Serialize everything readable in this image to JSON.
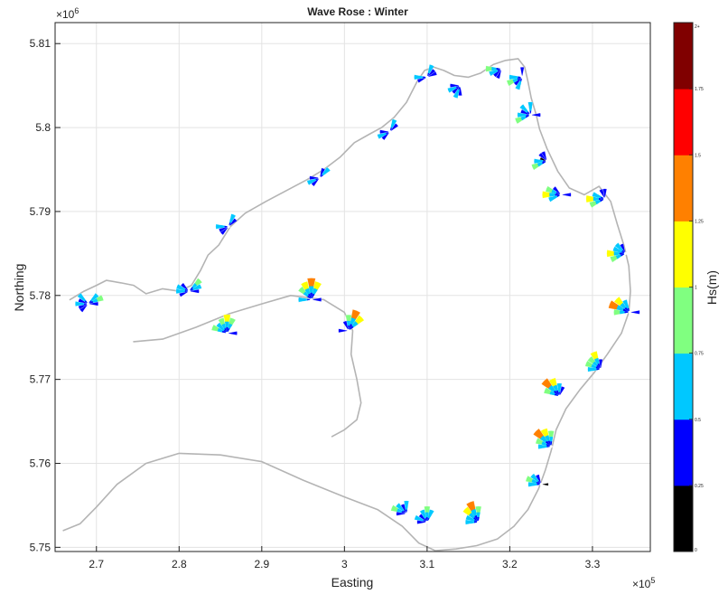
{
  "chart_data": {
    "type": "wave-rose-map",
    "title": "Wave Rose : Winter",
    "xlabel": "Easting",
    "ylabel": "Northing",
    "x_exponent": "×10",
    "x_exponent_power": "5",
    "y_exponent": "×10",
    "y_exponent_power": "6",
    "xlim": [
      2.65,
      3.37
    ],
    "ylim": [
      5.7495,
      5.8125
    ],
    "xticks": [
      {
        "value": 2.7,
        "label": "2.7"
      },
      {
        "value": 2.8,
        "label": "2.8"
      },
      {
        "value": 2.9,
        "label": "2.9"
      },
      {
        "value": 3.0,
        "label": "3"
      },
      {
        "value": 3.1,
        "label": "3.1"
      },
      {
        "value": 3.2,
        "label": "3.2"
      },
      {
        "value": 3.3,
        "label": "3.3"
      }
    ],
    "yticks": [
      {
        "value": 5.75,
        "label": "5.75"
      },
      {
        "value": 5.76,
        "label": "5.76"
      },
      {
        "value": 5.77,
        "label": "5.77"
      },
      {
        "value": 5.78,
        "label": "5.78"
      },
      {
        "value": 5.79,
        "label": "5.79"
      },
      {
        "value": 5.8,
        "label": "5.8"
      },
      {
        "value": 5.81,
        "label": "5.81"
      }
    ],
    "grid": true,
    "colorbar": {
      "label": "Hs(m)",
      "ticks": [
        "0",
        "0.25",
        "0.5",
        "0.75",
        "1",
        "1.25",
        "1.5",
        "1.75",
        "2+"
      ],
      "colors": [
        "#000000",
        "#0000ff",
        "#00c8ff",
        "#80ff80",
        "#ffff00",
        "#ff8000",
        "#ff0000",
        "#800000"
      ]
    },
    "coastline": [
      [
        2.668,
        5.7795
      ],
      [
        2.685,
        5.7805
      ],
      [
        2.7,
        5.7812
      ],
      [
        2.712,
        5.7818
      ],
      [
        2.73,
        5.7815
      ],
      [
        2.745,
        5.7812
      ],
      [
        2.76,
        5.7802
      ],
      [
        2.78,
        5.7808
      ],
      [
        2.8,
        5.7805
      ],
      [
        2.815,
        5.7812
      ],
      [
        2.826,
        5.783
      ],
      [
        2.835,
        5.7848
      ],
      [
        2.848,
        5.786
      ],
      [
        2.862,
        5.7882
      ],
      [
        2.88,
        5.7898
      ],
      [
        2.905,
        5.7912
      ],
      [
        2.93,
        5.7925
      ],
      [
        2.955,
        5.7938
      ],
      [
        2.975,
        5.795
      ],
      [
        2.995,
        5.7965
      ],
      [
        3.012,
        5.7982
      ],
      [
        3.03,
        5.7992
      ],
      [
        3.045,
        5.8
      ],
      [
        3.06,
        5.8012
      ],
      [
        3.075,
        5.803
      ],
      [
        3.088,
        5.8055
      ],
      [
        3.097,
        5.8068
      ],
      [
        3.108,
        5.8072
      ],
      [
        3.12,
        5.8068
      ],
      [
        3.133,
        5.8062
      ],
      [
        3.15,
        5.806
      ],
      [
        3.165,
        5.8065
      ],
      [
        3.18,
        5.8075
      ],
      [
        3.195,
        5.808
      ],
      [
        3.21,
        5.8082
      ],
      [
        3.218,
        5.8072
      ],
      [
        3.222,
        5.8055
      ],
      [
        3.226,
        5.8035
      ],
      [
        3.232,
        5.8015
      ],
      [
        3.236,
        5.7998
      ],
      [
        3.245,
        5.7975
      ],
      [
        3.258,
        5.7948
      ],
      [
        3.272,
        5.7928
      ],
      [
        3.29,
        5.792
      ],
      [
        3.308,
        5.793
      ],
      [
        3.322,
        5.7912
      ],
      [
        3.33,
        5.7885
      ],
      [
        3.338,
        5.786
      ],
      [
        3.344,
        5.7835
      ],
      [
        3.346,
        5.7805
      ],
      [
        3.344,
        5.778
      ],
      [
        3.335,
        5.7755
      ],
      [
        3.318,
        5.773
      ],
      [
        3.302,
        5.7708
      ],
      [
        3.285,
        5.7688
      ],
      [
        3.268,
        5.7665
      ],
      [
        3.256,
        5.764
      ],
      [
        3.25,
        5.7615
      ],
      [
        3.243,
        5.7592
      ],
      [
        3.235,
        5.757
      ],
      [
        3.222,
        5.7545
      ],
      [
        3.205,
        5.7525
      ],
      [
        3.185,
        5.751
      ],
      [
        3.16,
        5.7502
      ],
      [
        3.135,
        5.7498
      ],
      [
        3.11,
        5.7496
      ],
      [
        3.09,
        5.7505
      ],
      [
        3.07,
        5.7525
      ],
      [
        3.04,
        5.7545
      ],
      [
        3.0,
        5.756
      ],
      [
        2.95,
        5.758
      ],
      [
        2.9,
        5.7602
      ],
      [
        2.85,
        5.761
      ],
      [
        2.8,
        5.7612
      ],
      [
        2.76,
        5.76
      ],
      [
        2.725,
        5.7575
      ],
      [
        2.7,
        5.7548
      ],
      [
        2.68,
        5.7528
      ],
      [
        2.66,
        5.752
      ]
    ],
    "inner_shore": [
      [
        2.745,
        5.7745
      ],
      [
        2.78,
        5.7748
      ],
      [
        2.82,
        5.7762
      ],
      [
        2.86,
        5.7778
      ],
      [
        2.9,
        5.779
      ],
      [
        2.935,
        5.78
      ],
      [
        2.975,
        5.7795
      ],
      [
        3.0,
        5.778
      ],
      [
        3.01,
        5.7758
      ],
      [
        3.008,
        5.773
      ],
      [
        3.015,
        5.77
      ],
      [
        3.02,
        5.7672
      ],
      [
        3.015,
        5.7652
      ],
      [
        3.0,
        5.764
      ],
      [
        2.985,
        5.7632
      ]
    ],
    "stations": [
      {
        "x": 2.69,
        "y": 5.779,
        "sectors": [
          [
            225,
            "#0000ff"
          ],
          [
            247,
            "#0000ff"
          ],
          [
            270,
            "#00c8ff"
          ],
          [
            292,
            "#0000ff"
          ],
          [
            315,
            "#00c8ff"
          ],
          [
            45,
            "#00c8ff"
          ],
          [
            67,
            "#80ff80"
          ],
          [
            90,
            "#0000ff"
          ]
        ]
      },
      {
        "x": 2.812,
        "y": 5.7805,
        "sectors": [
          [
            247,
            "#0000ff"
          ],
          [
            270,
            "#00c8ff"
          ],
          [
            292,
            "#00c8ff"
          ],
          [
            315,
            "#0000ff"
          ],
          [
            45,
            "#80ff80"
          ],
          [
            67,
            "#00c8ff"
          ],
          [
            90,
            "#0000ff"
          ]
        ]
      },
      {
        "x": 2.858,
        "y": 5.7755,
        "sectors": [
          [
            0,
            "#ffff00"
          ],
          [
            22,
            "#80ff80"
          ],
          [
            292,
            "#80ff80"
          ],
          [
            315,
            "#00c8ff"
          ],
          [
            337,
            "#80ff80"
          ],
          [
            90,
            "#0000ff"
          ]
        ]
      },
      {
        "x": 2.86,
        "y": 5.7882,
        "sectors": [
          [
            22,
            "#00c8ff"
          ],
          [
            45,
            "#0000ff"
          ],
          [
            225,
            "#0000ff"
          ],
          [
            247,
            "#0000ff"
          ],
          [
            270,
            "#00c8ff"
          ]
        ]
      },
      {
        "x": 2.96,
        "y": 5.7795,
        "sectors": [
          [
            0,
            "#ff8000"
          ],
          [
            22,
            "#ffff00"
          ],
          [
            315,
            "#80ff80"
          ],
          [
            337,
            "#ffff00"
          ],
          [
            270,
            "#00c8ff"
          ],
          [
            90,
            "#0000ff"
          ]
        ]
      },
      {
        "x": 2.97,
        "y": 5.794,
        "sectors": [
          [
            22,
            "#0000ff"
          ],
          [
            45,
            "#00c8ff"
          ],
          [
            225,
            "#0000ff"
          ],
          [
            247,
            "#00c8ff"
          ],
          [
            270,
            "#0000ff"
          ]
        ]
      },
      {
        "x": 3.005,
        "y": 5.7758,
        "sectors": [
          [
            22,
            "#ff8000"
          ],
          [
            45,
            "#ffff00"
          ],
          [
            0,
            "#80ff80"
          ],
          [
            337,
            "#0000ff"
          ],
          [
            270,
            "#0000ff"
          ]
        ]
      },
      {
        "x": 3.055,
        "y": 5.7995,
        "sectors": [
          [
            22,
            "#00c8ff"
          ],
          [
            45,
            "#0000ff"
          ],
          [
            225,
            "#0000ff"
          ],
          [
            247,
            "#00c8ff"
          ],
          [
            270,
            "#0000ff"
          ]
        ]
      },
      {
        "x": 3.1,
        "y": 5.806,
        "sectors": [
          [
            22,
            "#00c8ff"
          ],
          [
            45,
            "#0000ff"
          ],
          [
            67,
            "#0000ff"
          ],
          [
            247,
            "#0000ff"
          ],
          [
            270,
            "#00c8ff"
          ]
        ]
      },
      {
        "x": 3.14,
        "y": 5.805,
        "sectors": [
          [
            180,
            "#0000ff"
          ],
          [
            202,
            "#00c8ff"
          ],
          [
            225,
            "#0000ff"
          ],
          [
            247,
            "#00c8ff"
          ],
          [
            270,
            "#0000ff"
          ]
        ]
      },
      {
        "x": 3.19,
        "y": 5.807,
        "sectors": [
          [
            202,
            "#0000ff"
          ],
          [
            225,
            "#0000ff"
          ],
          [
            247,
            "#00c8ff"
          ],
          [
            270,
            "#80ff80"
          ]
        ]
      },
      {
        "x": 3.215,
        "y": 5.806,
        "sectors": [
          [
            0,
            "#0000ff"
          ],
          [
            202,
            "#00c8ff"
          ],
          [
            225,
            "#0000ff"
          ],
          [
            247,
            "#80ff80"
          ],
          [
            270,
            "#00c8ff"
          ]
        ]
      },
      {
        "x": 3.225,
        "y": 5.8015,
        "sectors": [
          [
            0,
            "#00c8ff"
          ],
          [
            247,
            "#80ff80"
          ],
          [
            270,
            "#00c8ff"
          ],
          [
            292,
            "#0000ff"
          ],
          [
            315,
            "#00c8ff"
          ],
          [
            90,
            "#0000ff"
          ]
        ]
      },
      {
        "x": 3.245,
        "y": 5.796,
        "sectors": [
          [
            292,
            "#000000"
          ],
          [
            315,
            "#0000ff"
          ],
          [
            270,
            "#00c8ff"
          ],
          [
            337,
            "#0000ff"
          ],
          [
            247,
            "#80ff80"
          ]
        ]
      },
      {
        "x": 3.262,
        "y": 5.792,
        "sectors": [
          [
            270,
            "#ffff00"
          ],
          [
            292,
            "#80ff80"
          ],
          [
            247,
            "#00c8ff"
          ],
          [
            315,
            "#0000ff"
          ],
          [
            90,
            "#0000ff"
          ]
        ]
      },
      {
        "x": 3.315,
        "y": 5.7915,
        "sectors": [
          [
            270,
            "#ffff00"
          ],
          [
            247,
            "#80ff80"
          ],
          [
            292,
            "#00c8ff"
          ],
          [
            0,
            "#0000ff"
          ],
          [
            337,
            "#0000ff"
          ]
        ]
      },
      {
        "x": 3.34,
        "y": 5.785,
        "sectors": [
          [
            270,
            "#ffff00"
          ],
          [
            247,
            "#80ff80"
          ],
          [
            292,
            "#00c8ff"
          ],
          [
            315,
            "#00c8ff"
          ],
          [
            337,
            "#0000ff"
          ]
        ]
      },
      {
        "x": 3.345,
        "y": 5.778,
        "sectors": [
          [
            292,
            "#ff8000"
          ],
          [
            315,
            "#ffff00"
          ],
          [
            270,
            "#80ff80"
          ],
          [
            337,
            "#00c8ff"
          ],
          [
            90,
            "#0000ff"
          ]
        ]
      },
      {
        "x": 3.31,
        "y": 5.7712,
        "sectors": [
          [
            315,
            "#80ff80"
          ],
          [
            337,
            "#ffff00"
          ],
          [
            292,
            "#80ff80"
          ],
          [
            270,
            "#00c8ff"
          ],
          [
            0,
            "#0000ff"
          ]
        ]
      },
      {
        "x": 3.26,
        "y": 5.768,
        "sectors": [
          [
            315,
            "#ff8000"
          ],
          [
            337,
            "#ffff00"
          ],
          [
            292,
            "#80ff80"
          ],
          [
            0,
            "#00c8ff"
          ],
          [
            22,
            "#0000ff"
          ]
        ]
      },
      {
        "x": 3.25,
        "y": 5.762,
        "sectors": [
          [
            337,
            "#ffff00"
          ],
          [
            315,
            "#ff8000"
          ],
          [
            292,
            "#80ff80"
          ],
          [
            0,
            "#80ff80"
          ],
          [
            270,
            "#00c8ff"
          ]
        ]
      },
      {
        "x": 3.238,
        "y": 5.7575,
        "sectors": [
          [
            292,
            "#80ff80"
          ],
          [
            315,
            "#00c8ff"
          ],
          [
            337,
            "#0000ff"
          ],
          [
            270,
            "#00c8ff"
          ],
          [
            90,
            "#000000"
          ]
        ]
      },
      {
        "x": 3.162,
        "y": 5.753,
        "sectors": [
          [
            315,
            "#ffff00"
          ],
          [
            337,
            "#ff8000"
          ],
          [
            292,
            "#00c8ff"
          ],
          [
            270,
            "#00c8ff"
          ],
          [
            0,
            "#80ff80"
          ]
        ]
      },
      {
        "x": 3.1,
        "y": 5.753,
        "sectors": [
          [
            315,
            "#0000ff"
          ],
          [
            337,
            "#00c8ff"
          ],
          [
            292,
            "#00c8ff"
          ],
          [
            0,
            "#80ff80"
          ],
          [
            270,
            "#0000ff"
          ],
          [
            22,
            "#00c8ff"
          ]
        ]
      },
      {
        "x": 3.075,
        "y": 5.754,
        "sectors": [
          [
            315,
            "#00c8ff"
          ],
          [
            337,
            "#0000ff"
          ],
          [
            292,
            "#80ff80"
          ],
          [
            0,
            "#00c8ff"
          ],
          [
            270,
            "#0000ff"
          ]
        ]
      }
    ]
  }
}
